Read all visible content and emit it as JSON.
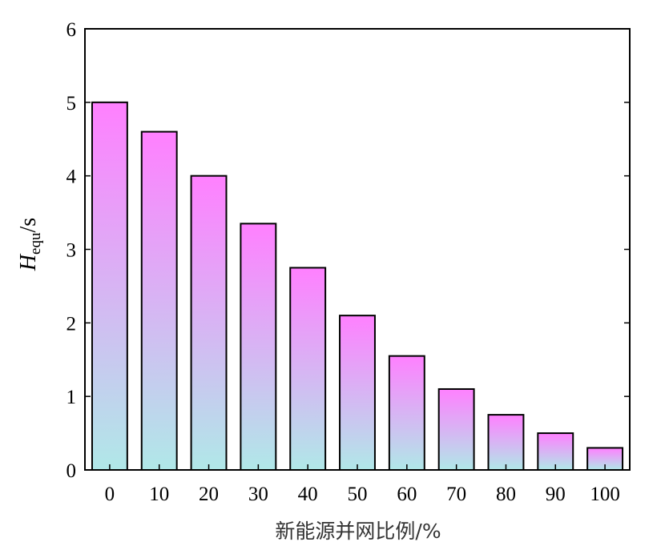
{
  "chart_data": {
    "type": "bar",
    "categories": [
      "0",
      "10",
      "20",
      "30",
      "40",
      "50",
      "60",
      "70",
      "80",
      "90",
      "100"
    ],
    "values": [
      5.0,
      4.6,
      4.0,
      3.35,
      2.75,
      2.1,
      1.55,
      1.1,
      0.75,
      0.5,
      0.3
    ],
    "xlabel": "新能源并网比例/%",
    "ylabel": {
      "main": "H",
      "sub": "equ",
      "unit": "/s"
    },
    "ylim": [
      0,
      6
    ],
    "yticks": [
      "0",
      "1",
      "2",
      "3",
      "4",
      "5",
      "6"
    ],
    "grid": false,
    "colors": {
      "bar_top": "#ff80ff",
      "bar_bottom": "#b0e8e8",
      "bar_stroke": "#000000"
    }
  }
}
